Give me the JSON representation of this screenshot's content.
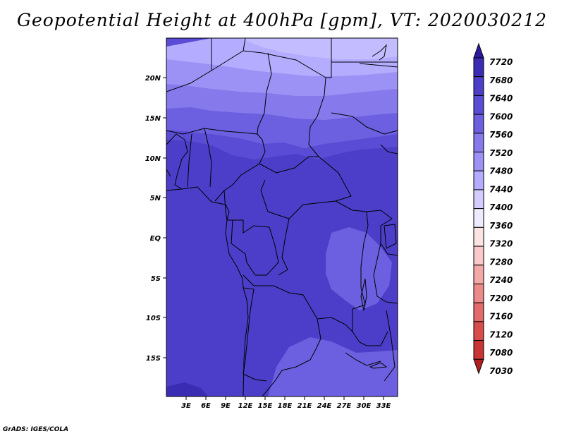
{
  "title": "Geopotential Height at 400hPa [gpm], VT: 2020030212",
  "footer": "GrADS: IGES/COLA",
  "map": {
    "lon_range": [
      0,
      34
    ],
    "lat_range": [
      -20,
      25
    ],
    "lon_ticks": [
      "3E",
      "6E",
      "9E",
      "12E",
      "15E",
      "18E",
      "21E",
      "24E",
      "27E",
      "30E",
      "33E"
    ],
    "lat_ticks": [
      "20N",
      "15N",
      "10N",
      "5N",
      "EQ",
      "5S",
      "10S",
      "15S"
    ],
    "fill_colors": {
      "band_7480": "#b4acff",
      "band_7520": "#9c92f6",
      "band_7560": "#8579ec",
      "band_7600": "#6c60e0",
      "band_7640": "#5a4cd4",
      "band_7680": "#4c3ec8",
      "band_7720": "#3b2cb4"
    }
  },
  "colorbar": {
    "labels": [
      "7720",
      "7680",
      "7640",
      "7600",
      "7560",
      "7520",
      "7480",
      "7440",
      "7400",
      "7360",
      "7320",
      "7280",
      "7240",
      "7200",
      "7160",
      "7120",
      "7080",
      "7030"
    ],
    "colors": [
      "#2c1aa0",
      "#3b2cb4",
      "#4c3ec8",
      "#5a4cd4",
      "#6c60e0",
      "#8579ec",
      "#9c92f6",
      "#b4acff",
      "#d2ccff",
      "#ecebff",
      "#fde4e4",
      "#fbc9c9",
      "#f4a9a9",
      "#ec8a8a",
      "#e36a6a",
      "#d84c4c",
      "#c93434",
      "#b02020"
    ]
  }
}
